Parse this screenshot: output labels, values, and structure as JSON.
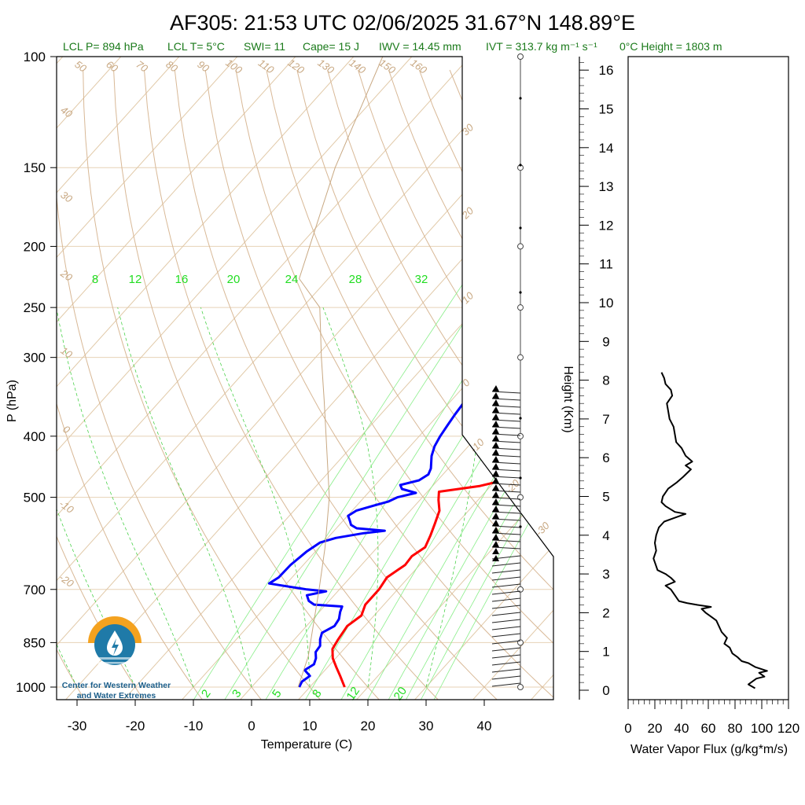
{
  "title": "AF305: 21:53 UTC 02/06/2025  31.67°N 148.89°E",
  "info": {
    "lcl_p": "LCL P= 894 hPa",
    "lcl_t": "LCL T= 5°C",
    "swi": "SWI= 11",
    "cape": "Cape= 15 J",
    "iwv": "IWV = 14.45 mm",
    "ivt": "IVT = 313.7 kg m⁻¹ s⁻¹",
    "zero_c": "0°C Height = 1803 m"
  },
  "logo": {
    "line1": "Center for Western Weather",
    "line2": "and Water Extremes",
    "colors": {
      "sun": "#f4a21f",
      "water": "#1f7aa8"
    }
  },
  "chart_data": [
    {
      "type": "line",
      "subtype": "skew-t log-p",
      "xlabel": "Temperature (C)",
      "ylabel": "P (hPa)",
      "x_ticks": [
        "-30",
        "-20",
        "-10",
        "0",
        "10",
        "20",
        "30",
        "40"
      ],
      "y_ticks": [
        "100",
        "150",
        "200",
        "250",
        "300",
        "400",
        "500",
        "700",
        "850",
        "1000"
      ],
      "xlim": [
        -33,
        52
      ],
      "ylim": [
        1050,
        100
      ],
      "y_scale": "log",
      "dry_adiabat_labels": [
        "50",
        "60",
        "70",
        "80",
        "90",
        "100",
        "110",
        "120",
        "130",
        "140",
        "150",
        "160",
        "40",
        "30",
        "20",
        "10",
        "0",
        "-10",
        "-20"
      ],
      "moist_adiabat_labels": [
        "30",
        "20",
        "10",
        "0",
        "-10",
        "-20",
        "-30"
      ],
      "mixing_ratio_labels_top": [
        "8",
        "12",
        "16",
        "20",
        "24",
        "28",
        "32"
      ],
      "mixing_ratio_labels_bottom": [
        "2",
        "3",
        "5",
        "8",
        "12",
        "20"
      ],
      "series": [
        {
          "name": "Temperature",
          "color": "#ff0000",
          "points": [
            [
              16,
              1000
            ],
            [
              13.5,
              960
            ],
            [
              11.5,
              930
            ],
            [
              9.5,
              900
            ],
            [
              8,
              870
            ],
            [
              7.5,
              840
            ],
            [
              7,
              800
            ],
            [
              7.8,
              770
            ],
            [
              6.8,
              740
            ],
            [
              6.8,
              700
            ],
            [
              6.3,
              670
            ],
            [
              7.5,
              640
            ],
            [
              7.3,
              620
            ],
            [
              8.2,
              600
            ],
            [
              7.3,
              575
            ],
            [
              6.2,
              550
            ],
            [
              5,
              525
            ],
            [
              3.2,
              505
            ],
            [
              2,
              490
            ],
            [
              8,
              480
            ],
            [
              11.3,
              470
            ],
            [
              10.7,
              455
            ],
            [
              9.4,
              440
            ],
            [
              8.8,
              420
            ],
            [
              9.8,
              405
            ],
            [
              10.4,
              395
            ],
            [
              11.6,
              388
            ],
            [
              13.1,
              380
            ],
            [
              13.4,
              360
            ],
            [
              12.8,
              350
            ],
            [
              12.6,
              345
            ]
          ]
        },
        {
          "name": "Dewpoint",
          "color": "#0000ff",
          "points": [
            [
              8.2,
              1000
            ],
            [
              7.8,
              980
            ],
            [
              8.3,
              960
            ],
            [
              6.5,
              940
            ],
            [
              7.2,
              920
            ],
            [
              6.6,
              900
            ],
            [
              5.6,
              880
            ],
            [
              5.4,
              860
            ],
            [
              4.4,
              840
            ],
            [
              3.7,
              820
            ],
            [
              4.8,
              800
            ],
            [
              4.5,
              780
            ],
            [
              3.6,
              760
            ],
            [
              3.1,
              745
            ],
            [
              -2,
              740
            ],
            [
              -3.5,
              730
            ],
            [
              -4.7,
              715
            ],
            [
              -2,
              705
            ],
            [
              -5.6,
              700
            ],
            [
              -10.5,
              690
            ],
            [
              -13,
              685
            ],
            [
              -12.3,
              670
            ],
            [
              -12.2,
              640
            ],
            [
              -11.5,
              610
            ],
            [
              -10.6,
              590
            ],
            [
              -8.6,
              580
            ],
            [
              -4.5,
              570
            ],
            [
              -1.3,
              565
            ],
            [
              -6.5,
              560
            ],
            [
              -8,
              553
            ],
            [
              -8.8,
              545
            ],
            [
              -9.9,
              535
            ],
            [
              -9.3,
              525
            ],
            [
              -7,
              515
            ],
            [
              -5.2,
              508
            ],
            [
              -4.3,
              500
            ],
            [
              -1.8,
              492
            ],
            [
              -4.8,
              485
            ],
            [
              -5.7,
              478
            ],
            [
              -3.2,
              470
            ],
            [
              -2.5,
              460
            ],
            [
              -3,
              450
            ],
            [
              -4.8,
              430
            ],
            [
              -5.8,
              415
            ],
            [
              -6.4,
              400
            ],
            [
              -6.8,
              385
            ],
            [
              -7.2,
              370
            ],
            [
              -7.5,
              355
            ],
            [
              -7.3,
              345
            ]
          ]
        },
        {
          "name": "Parcel",
          "color": "#c8a882",
          "points": [
            [
              8,
              1000
            ],
            [
              5,
              894
            ],
            [
              -3.5,
              700
            ],
            [
              -9,
              600
            ],
            [
              -16,
              500
            ],
            [
              -26,
              400
            ],
            [
              -32,
              350
            ],
            [
              -39,
              300
            ],
            [
              -47,
              250
            ],
            [
              -55,
              225
            ],
            [
              -66,
              150
            ],
            [
              -75,
              100
            ]
          ]
        }
      ]
    },
    {
      "type": "line",
      "xlabel": "Water Vapor Flux (g/kg*m/s)",
      "ylabel": "Height (Km)",
      "x_ticks": [
        "0",
        "20",
        "40",
        "60",
        "80",
        "100",
        "120"
      ],
      "y_ticks": [
        "0",
        "1",
        "2",
        "3",
        "4",
        "5",
        "6",
        "7",
        "8",
        "9",
        "10",
        "11",
        "12",
        "13",
        "14",
        "15",
        "16"
      ],
      "xlim": [
        0,
        120
      ],
      "ylim": [
        -0.25,
        16.3
      ],
      "series": [
        {
          "name": "",
          "color": "#000000",
          "points": [
            [
              95,
              0.05
            ],
            [
              90,
              0.15
            ],
            [
              96,
              0.3
            ],
            [
              102,
              0.35
            ],
            [
              98,
              0.45
            ],
            [
              104,
              0.5
            ],
            [
              95,
              0.6
            ],
            [
              90,
              0.7
            ],
            [
              85,
              0.75
            ],
            [
              82,
              0.85
            ],
            [
              78,
              0.95
            ],
            [
              76,
              1.1
            ],
            [
              72,
              1.2
            ],
            [
              74,
              1.35
            ],
            [
              70,
              1.5
            ],
            [
              68,
              1.65
            ],
            [
              66,
              1.8
            ],
            [
              62,
              1.9
            ],
            [
              58,
              2.0
            ],
            [
              55,
              2.1
            ],
            [
              62,
              2.15
            ],
            [
              52,
              2.2
            ],
            [
              44,
              2.25
            ],
            [
              38,
              2.3
            ],
            [
              35,
              2.45
            ],
            [
              32,
              2.6
            ],
            [
              28,
              2.7
            ],
            [
              35,
              2.8
            ],
            [
              32,
              2.9
            ],
            [
              28,
              3.0
            ],
            [
              22,
              3.1
            ],
            [
              21,
              3.2
            ],
            [
              20,
              3.3
            ],
            [
              19,
              3.4
            ],
            [
              21,
              3.6
            ],
            [
              20,
              3.8
            ],
            [
              21,
              4.0
            ],
            [
              23,
              4.2
            ],
            [
              27,
              4.35
            ],
            [
              35,
              4.45
            ],
            [
              43,
              4.55
            ],
            [
              35,
              4.6
            ],
            [
              28,
              4.75
            ],
            [
              25,
              4.85
            ],
            [
              26,
              5.0
            ],
            [
              30,
              5.2
            ],
            [
              36,
              5.35
            ],
            [
              41,
              5.5
            ],
            [
              47,
              5.7
            ],
            [
              43,
              5.8
            ],
            [
              48,
              5.9
            ],
            [
              43,
              6.05
            ],
            [
              40,
              6.25
            ],
            [
              36,
              6.4
            ],
            [
              35,
              6.6
            ],
            [
              34,
              6.8
            ],
            [
              31,
              7.0
            ],
            [
              30,
              7.2
            ],
            [
              29,
              7.4
            ],
            [
              33,
              7.6
            ],
            [
              32,
              7.75
            ],
            [
              28,
              7.9
            ],
            [
              27,
              8.05
            ],
            [
              25,
              8.2
            ]
          ]
        }
      ]
    }
  ]
}
